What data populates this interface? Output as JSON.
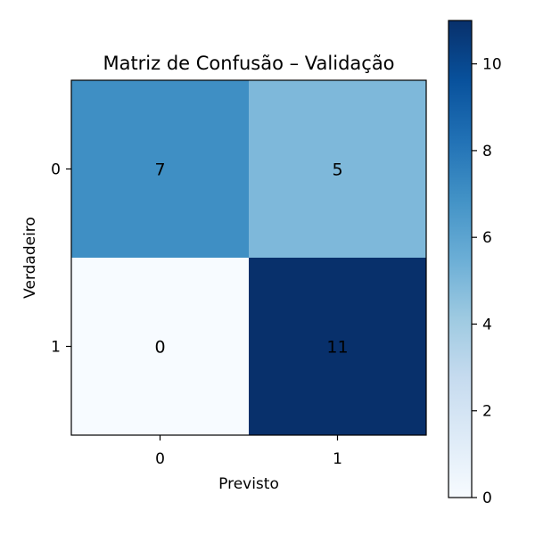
{
  "chart_data": {
    "type": "heatmap",
    "title": "Matriz de Confusão – Validação",
    "xlabel": "Previsto",
    "ylabel": "Verdadeiro",
    "x_categories": [
      "0",
      "1"
    ],
    "y_categories": [
      "0",
      "1"
    ],
    "matrix": [
      [
        7,
        5
      ],
      [
        0,
        11
      ]
    ],
    "cell_labels": [
      [
        "7",
        "5"
      ],
      [
        "0",
        "11"
      ]
    ],
    "colormap": "Blues",
    "value_range": [
      0,
      11
    ],
    "colorbar": {
      "ticks": [
        0,
        2,
        4,
        6,
        8,
        10
      ],
      "tick_labels": [
        "0",
        "2",
        "4",
        "6",
        "8",
        "10"
      ]
    },
    "grid": false
  }
}
